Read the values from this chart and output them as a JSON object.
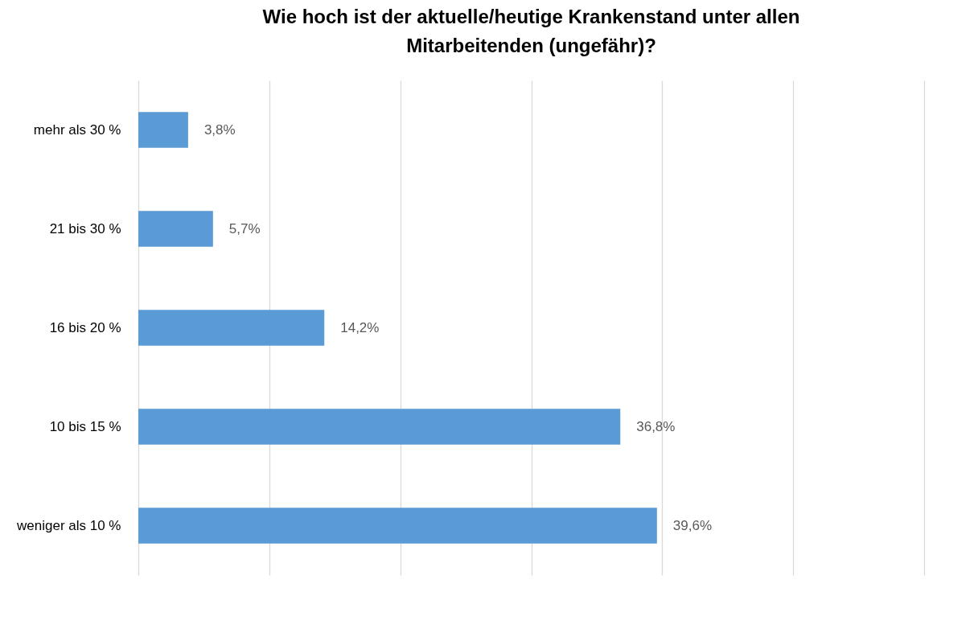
{
  "chart_data": {
    "type": "bar",
    "orientation": "horizontal",
    "title": "Wie hoch ist der aktuelle/heutige Krankenstand unter allen Mitarbeitenden (ungefähr)?",
    "categories": [
      "mehr als 30 %",
      "21 bis 30 %",
      "16 bis 20 %",
      "10 bis 15 %",
      "weniger als 10 %"
    ],
    "values": [
      3.8,
      5.7,
      14.2,
      36.8,
      39.6
    ],
    "value_labels": [
      "3,8%",
      "5,7%",
      "14,2%",
      "36,8%",
      "39,6%"
    ],
    "color": "#5b9bd5",
    "xlim": [
      0,
      60
    ],
    "xticks": [
      {
        "value": 0,
        "label": null
      },
      {
        "value": 10,
        "label": null
      },
      {
        "value": 20,
        "label": null
      },
      {
        "value": 30,
        "label": null
      },
      {
        "value": 40,
        "label": null
      },
      {
        "value": 50,
        "label": null
      },
      {
        "value": 60,
        "label": null
      }
    ],
    "grid": "x",
    "tick_labels": "y"
  }
}
